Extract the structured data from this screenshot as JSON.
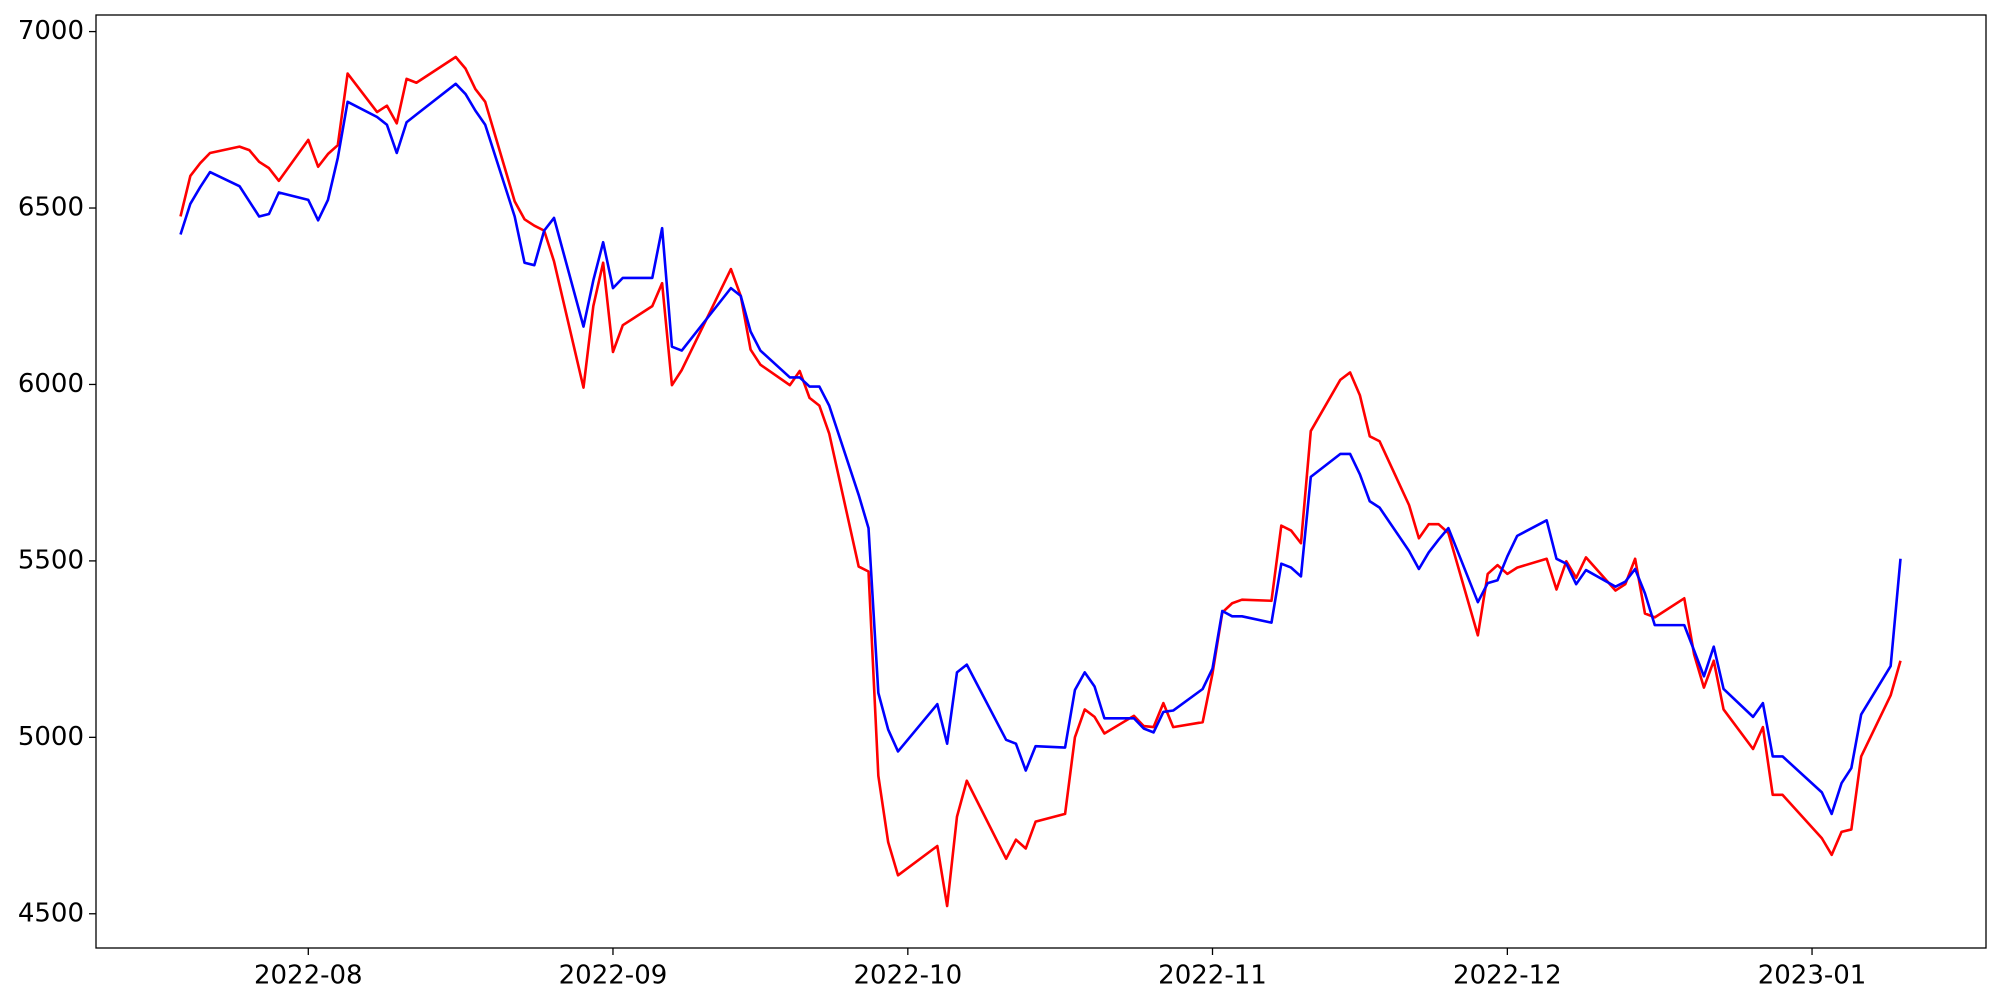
{
  "chart_data": {
    "type": "line",
    "x": [
      19192,
      19193,
      19194,
      19195,
      19198,
      19199,
      19200,
      19201,
      19202,
      19205,
      19206,
      19207,
      19208,
      19209,
      19212,
      19213,
      19214,
      19215,
      19216,
      19220,
      19221,
      19222,
      19223,
      19226,
      19227,
      19228,
      19229,
      19230,
      19233,
      19234,
      19235,
      19236,
      19237,
      19240,
      19241,
      19242,
      19243,
      19248,
      19249,
      19250,
      19251,
      19254,
      19255,
      19256,
      19257,
      19258,
      19261,
      19262,
      19263,
      19264,
      19265,
      19269,
      19270,
      19271,
      19272,
      19276,
      19277,
      19278,
      19279,
      19282,
      19283,
      19284,
      19285,
      19286,
      19289,
      19290,
      19291,
      19292,
      19293,
      19296,
      19297,
      19298,
      19299,
      19300,
      19303,
      19304,
      19305,
      19306,
      19307,
      19310,
      19311,
      19312,
      19313,
      19314,
      19317,
      19318,
      19319,
      19320,
      19321,
      19324,
      19325,
      19326,
      19327,
      19328,
      19331,
      19332,
      19333,
      19334,
      19335,
      19338,
      19339,
      19340,
      19341,
      19342,
      19345,
      19346,
      19347,
      19348,
      19349,
      19352,
      19353,
      19354,
      19355,
      19359,
      19360,
      19361,
      19362,
      19363,
      19366,
      19367
    ],
    "series": [
      {
        "color": "#ff0000",
        "values": [
          6476,
          6591,
          6627,
          6656,
          6674,
          6664,
          6631,
          6613,
          6577,
          6693,
          6617,
          6653,
          6678,
          6881,
          6772,
          6790,
          6740,
          6866,
          6855,
          6928,
          6895,
          6837,
          6801,
          6519,
          6468,
          6450,
          6436,
          6349,
          5991,
          6222,
          6345,
          6092,
          6168,
          6222,
          6287,
          5998,
          6041,
          6327,
          6251,
          6099,
          6056,
          5998,
          6038,
          5962,
          5940,
          5861,
          5484,
          5470,
          4891,
          4703,
          4609,
          4692,
          4522,
          4775,
          4877,
          4656,
          4710,
          4685,
          4761,
          4783,
          5000,
          5079,
          5058,
          5011,
          5061,
          5032,
          5029,
          5097,
          5029,
          5043,
          5181,
          5354,
          5380,
          5390,
          5387,
          5600,
          5586,
          5550,
          5868,
          6013,
          6034,
          5969,
          5853,
          5839,
          5658,
          5564,
          5604,
          5604,
          5579,
          5289,
          5463,
          5488,
          5463,
          5481,
          5506,
          5419,
          5499,
          5452,
          5510,
          5416,
          5434,
          5506,
          5351,
          5340,
          5394,
          5235,
          5141,
          5217,
          5079,
          4967,
          5029,
          4837,
          4837,
          4714,
          4667,
          4732,
          4739,
          4946,
          5119,
          5217
        ]
      },
      {
        "color": "#0000ff",
        "values": [
          6425,
          6512,
          6559,
          6602,
          6562,
          6519,
          6476,
          6483,
          6544,
          6523,
          6465,
          6523,
          6642,
          6801,
          6758,
          6736,
          6656,
          6743,
          6765,
          6852,
          6823,
          6776,
          6736,
          6476,
          6345,
          6338,
          6436,
          6472,
          6164,
          6295,
          6403,
          6273,
          6302,
          6302,
          6443,
          6107,
          6096,
          6273,
          6251,
          6150,
          6096,
          6020,
          6020,
          5994,
          5994,
          5940,
          5687,
          5593,
          5126,
          5022,
          4960,
          5094,
          4982,
          5184,
          5206,
          4993,
          4982,
          4906,
          4975,
          4971,
          5134,
          5184,
          5144,
          5054,
          5054,
          5025,
          5014,
          5072,
          5076,
          5137,
          5195,
          5358,
          5343,
          5343,
          5325,
          5492,
          5481,
          5456,
          5738,
          5803,
          5803,
          5745,
          5669,
          5651,
          5528,
          5477,
          5524,
          5560,
          5593,
          5383,
          5437,
          5445,
          5513,
          5571,
          5615,
          5506,
          5492,
          5434,
          5474,
          5427,
          5441,
          5477,
          5408,
          5318,
          5318,
          5246,
          5173,
          5257,
          5137,
          5058,
          5097,
          4946,
          4946,
          4844,
          4783,
          4870,
          4913,
          5065,
          5202,
          5506
        ]
      }
    ],
    "xlim": [
      19183.4,
      19375.7
    ],
    "xticks": [
      {
        "value": 19205,
        "label": "2022-08"
      },
      {
        "value": 19236,
        "label": "2022-09"
      },
      {
        "value": 19266,
        "label": "2022-10"
      },
      {
        "value": 19297,
        "label": "2022-11"
      },
      {
        "value": 19327,
        "label": "2022-12"
      },
      {
        "value": 19358,
        "label": "2023-01"
      }
    ],
    "ylim": [
      4403,
      7047
    ],
    "yticks": [
      4500,
      5000,
      5500,
      6000,
      6500,
      7000
    ],
    "grid": false
  }
}
